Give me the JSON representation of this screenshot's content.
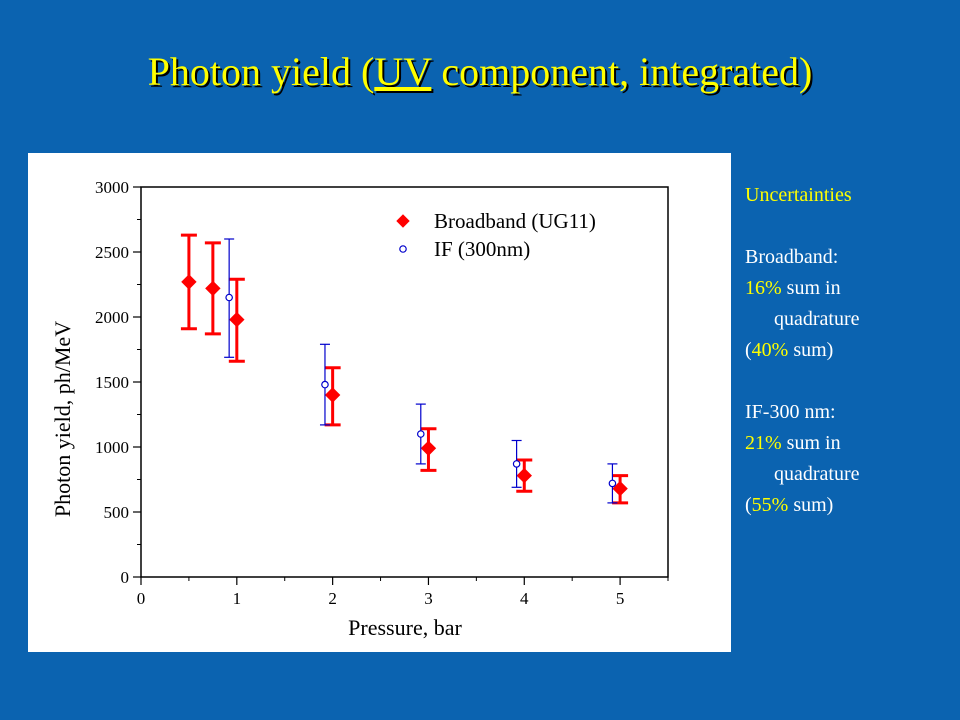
{
  "title": {
    "before": "Photon yield (",
    "underlined": "UV",
    "after": " component, integrated)"
  },
  "notes": {
    "heading": "Uncertainties",
    "broadband_label": "Broadband:",
    "broadband_pct": "16%",
    "broadband_rest": " sum in",
    "broadband_cont": "quadrature",
    "broadband_sum_open": "(",
    "broadband_sum_pct": "40%",
    "broadband_sum_close": " sum)",
    "if_label": "IF-300 nm:",
    "if_pct": "21%",
    "if_rest": " sum in",
    "if_cont": "quadrature",
    "if_sum_open": "(",
    "if_sum_pct": "55%",
    "if_sum_close": " sum)"
  },
  "colors": {
    "background": "#0b63b0",
    "title": "#ffff00",
    "broadband": "#ff0000",
    "if300": "#0000cc"
  },
  "chart_data": {
    "type": "scatter",
    "xlabel": "Pressure, bar",
    "ylabel": "Photon yield, ph/MeV",
    "xlim": [
      0,
      5.5
    ],
    "ylim": [
      0,
      3000
    ],
    "xticks": [
      0,
      1,
      2,
      3,
      4,
      5
    ],
    "yticks": [
      0,
      500,
      1000,
      1500,
      2000,
      2500,
      3000
    ],
    "grid": false,
    "legend_position": "top-right",
    "series": [
      {
        "name": "Broadband (UG11)",
        "marker": "diamond",
        "color": "#ff0000",
        "x": [
          0.5,
          0.75,
          1.0,
          2.0,
          3.0,
          4.0,
          5.0
        ],
        "y": [
          2270,
          2220,
          1980,
          1400,
          990,
          780,
          680
        ],
        "err_low": [
          1910,
          1870,
          1660,
          1170,
          820,
          660,
          570
        ],
        "err_high": [
          2630,
          2570,
          2290,
          1610,
          1140,
          900,
          780
        ]
      },
      {
        "name": "IF (300nm)",
        "marker": "open-circle",
        "color": "#0000cc",
        "x": [
          0.92,
          1.92,
          2.92,
          3.92,
          4.92
        ],
        "y": [
          2150,
          1480,
          1100,
          870,
          720
        ],
        "err_low": [
          1690,
          1170,
          870,
          690,
          570
        ],
        "err_high": [
          2600,
          1790,
          1330,
          1050,
          870
        ]
      }
    ]
  }
}
